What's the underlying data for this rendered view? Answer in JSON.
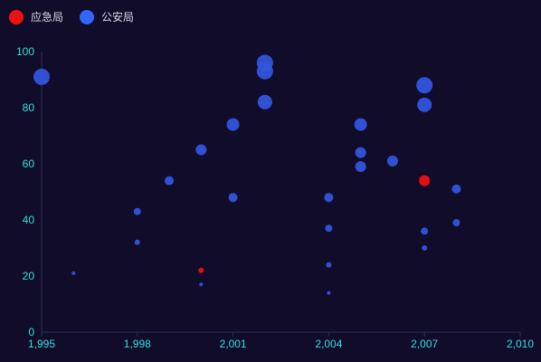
{
  "chart_data": {
    "type": "scatter",
    "x_ticks": [
      "1,995",
      "1,998",
      "2,001",
      "2,004",
      "2,007",
      "2,010"
    ],
    "y_ticks": [
      "0",
      "20",
      "40",
      "60",
      "80",
      "100"
    ],
    "xlim": [
      1995,
      2010
    ],
    "ylim": [
      0,
      100
    ],
    "grid": false,
    "legend_position": "top-left",
    "series": [
      {
        "name": "应急局",
        "color": "#ee1111",
        "points": [
          {
            "x": 2000,
            "y": 22,
            "size": 3
          },
          {
            "x": 2007,
            "y": 54,
            "size": 6
          }
        ]
      },
      {
        "name": "公安局",
        "color": "#3355dd",
        "points": [
          {
            "x": 1995,
            "y": 91,
            "size": 9
          },
          {
            "x": 1996,
            "y": 21,
            "size": 2
          },
          {
            "x": 1998,
            "y": 43,
            "size": 4
          },
          {
            "x": 1998,
            "y": 32,
            "size": 3
          },
          {
            "x": 1999,
            "y": 54,
            "size": 5
          },
          {
            "x": 2000,
            "y": 65,
            "size": 6
          },
          {
            "x": 2000,
            "y": 17,
            "size": 2
          },
          {
            "x": 2001,
            "y": 74,
            "size": 7
          },
          {
            "x": 2001,
            "y": 48,
            "size": 5
          },
          {
            "x": 2002,
            "y": 96,
            "size": 9
          },
          {
            "x": 2002,
            "y": 93,
            "size": 9
          },
          {
            "x": 2002,
            "y": 82,
            "size": 8
          },
          {
            "x": 2004,
            "y": 48,
            "size": 5
          },
          {
            "x": 2004,
            "y": 37,
            "size": 4
          },
          {
            "x": 2004,
            "y": 24,
            "size": 3
          },
          {
            "x": 2004,
            "y": 14,
            "size": 2
          },
          {
            "x": 2005,
            "y": 74,
            "size": 7
          },
          {
            "x": 2005,
            "y": 64,
            "size": 6
          },
          {
            "x": 2005,
            "y": 59,
            "size": 6
          },
          {
            "x": 2006,
            "y": 61,
            "size": 6
          },
          {
            "x": 2007,
            "y": 88,
            "size": 9
          },
          {
            "x": 2007,
            "y": 81,
            "size": 8
          },
          {
            "x": 2007,
            "y": 36,
            "size": 4
          },
          {
            "x": 2007,
            "y": 30,
            "size": 3
          },
          {
            "x": 2008,
            "y": 51,
            "size": 5
          },
          {
            "x": 2008,
            "y": 39,
            "size": 4
          }
        ]
      }
    ]
  },
  "colors": {
    "background": "#100c2a",
    "axis_label": "#33e0d8",
    "axis_line": "#2a2f5a"
  }
}
